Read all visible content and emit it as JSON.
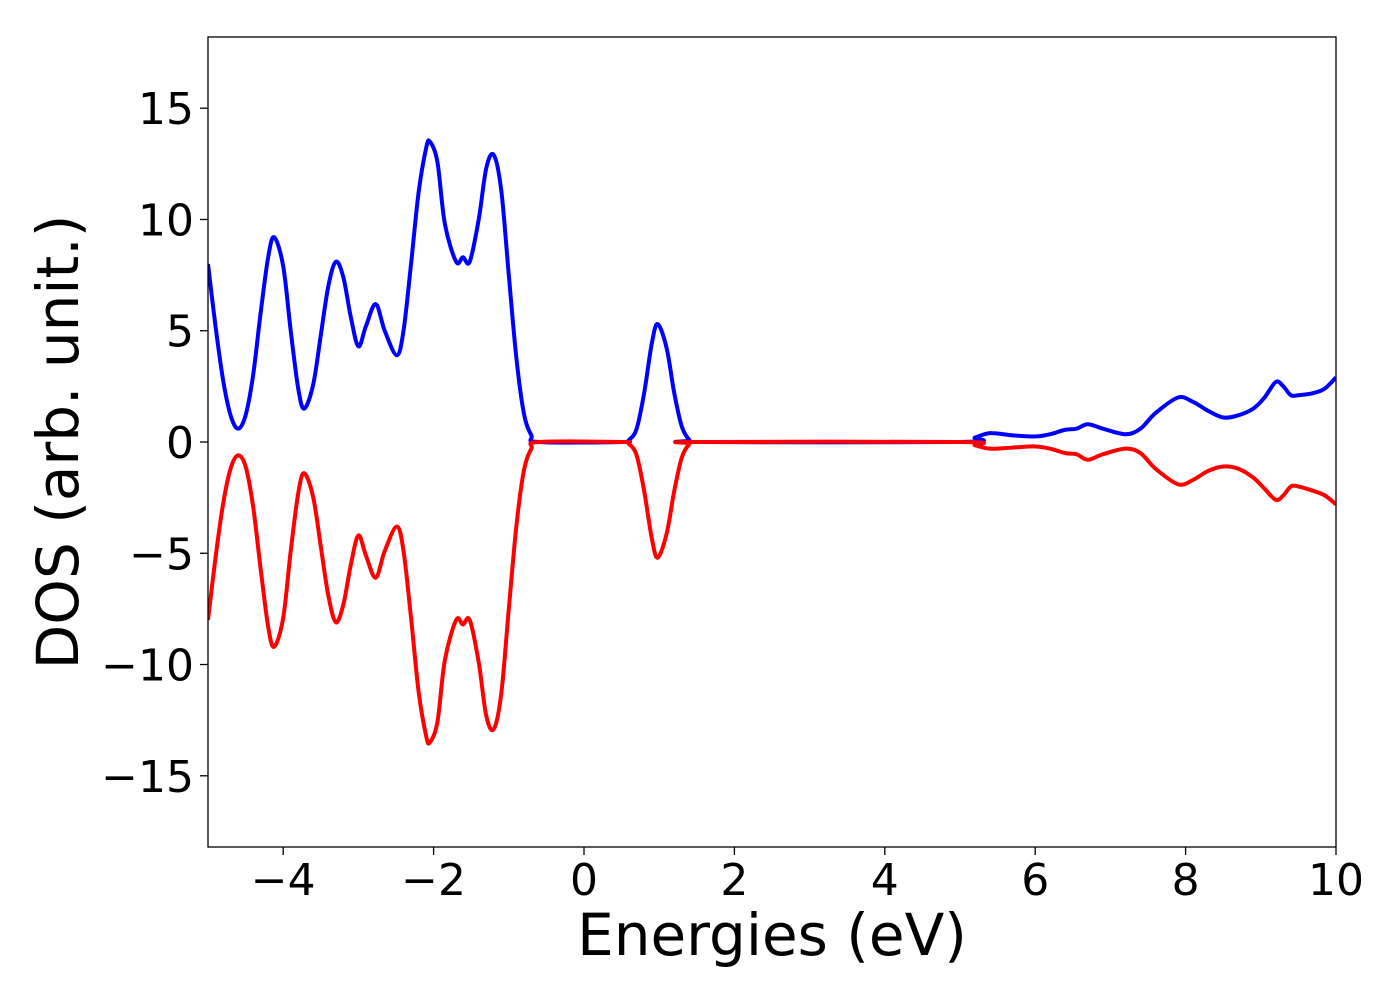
{
  "chart_data": {
    "type": "line",
    "x_label": "Energies (eV)",
    "y_label": "DOS (arb. unit.)",
    "x": [
      -5.0,
      -4.9,
      -4.8,
      -4.7,
      -4.6,
      -4.5,
      -4.4,
      -4.3,
      -4.2,
      -4.12,
      -4.0,
      -3.9,
      -3.8,
      -3.72,
      -3.6,
      -3.5,
      -3.4,
      -3.3,
      -3.2,
      -3.1,
      -3.0,
      -2.9,
      -2.77,
      -2.65,
      -2.49,
      -2.4,
      -2.3,
      -2.2,
      -2.1,
      -2.05,
      -1.95,
      -1.85,
      -1.7,
      -1.61,
      -1.52,
      -1.4,
      -1.3,
      -1.2,
      -1.1,
      -1.0,
      -0.9,
      -0.8,
      -0.7,
      -0.6,
      0.5,
      0.6,
      0.7,
      0.8,
      0.9,
      0.98,
      1.1,
      1.2,
      1.3,
      1.4,
      1.5,
      5.0,
      5.2,
      5.4,
      5.7,
      6.0,
      6.2,
      6.4,
      6.55,
      6.7,
      6.9,
      7.2,
      7.4,
      7.6,
      7.9,
      8.1,
      8.3,
      8.5,
      8.7,
      8.9,
      9.05,
      9.2,
      9.3,
      9.4,
      9.5,
      9.7,
      9.85,
      10.0
    ],
    "series": [
      {
        "color": "#0000ff",
        "values": [
          8.0,
          5.2,
          2.8,
          1.2,
          0.6,
          1.2,
          3.0,
          5.8,
          8.3,
          9.2,
          7.9,
          5.0,
          2.4,
          1.5,
          2.6,
          4.8,
          7.0,
          8.1,
          7.4,
          5.6,
          4.3,
          5.2,
          6.2,
          5.0,
          3.9,
          5.0,
          8.0,
          11.2,
          13.2,
          13.5,
          12.6,
          9.8,
          8.1,
          8.3,
          8.1,
          10.0,
          12.3,
          12.9,
          11.3,
          7.5,
          3.8,
          1.3,
          0.3,
          0.0,
          0.0,
          0.1,
          0.6,
          2.2,
          4.4,
          5.3,
          4.2,
          2.2,
          0.7,
          0.1,
          0.0,
          0.0,
          0.2,
          0.4,
          0.3,
          0.25,
          0.35,
          0.55,
          0.6,
          0.8,
          0.6,
          0.35,
          0.6,
          1.3,
          2.0,
          1.8,
          1.4,
          1.1,
          1.2,
          1.5,
          2.0,
          2.7,
          2.5,
          2.1,
          2.1,
          2.2,
          2.4,
          2.9
        ]
      },
      {
        "color": "#ff0000",
        "values": [
          -8.0,
          -5.2,
          -2.8,
          -1.2,
          -0.6,
          -1.1,
          -2.9,
          -5.7,
          -8.3,
          -9.2,
          -7.9,
          -4.9,
          -2.3,
          -1.4,
          -2.5,
          -4.7,
          -6.9,
          -8.1,
          -7.3,
          -5.5,
          -4.2,
          -5.1,
          -6.1,
          -4.9,
          -3.8,
          -4.9,
          -7.9,
          -11.2,
          -13.2,
          -13.5,
          -12.6,
          -9.8,
          -8.0,
          -8.2,
          -8.0,
          -9.9,
          -12.3,
          -12.9,
          -11.3,
          -7.5,
          -3.8,
          -1.3,
          -0.3,
          0.0,
          0.0,
          -0.1,
          -0.6,
          -2.2,
          -4.3,
          -5.2,
          -4.1,
          -2.2,
          -0.7,
          -0.1,
          0.0,
          0.0,
          -0.15,
          -0.3,
          -0.25,
          -0.2,
          -0.3,
          -0.5,
          -0.55,
          -0.8,
          -0.55,
          -0.3,
          -0.5,
          -1.2,
          -1.9,
          -1.7,
          -1.3,
          -1.1,
          -1.2,
          -1.6,
          -2.1,
          -2.6,
          -2.4,
          -2.0,
          -2.0,
          -2.2,
          -2.4,
          -2.8
        ]
      }
    ],
    "xlim": [
      -5,
      10
    ],
    "ylim": [
      -18.2,
      18.2
    ],
    "xticks": [
      {
        "value": -4,
        "label": "−4"
      },
      {
        "value": -2,
        "label": "−2"
      },
      0,
      2,
      4,
      6,
      8,
      10
    ],
    "yticks": [
      {
        "value": -15,
        "label": "−15"
      },
      {
        "value": -10,
        "label": "−10"
      },
      {
        "value": -5,
        "label": "−5"
      },
      0,
      5,
      10,
      15
    ]
  }
}
